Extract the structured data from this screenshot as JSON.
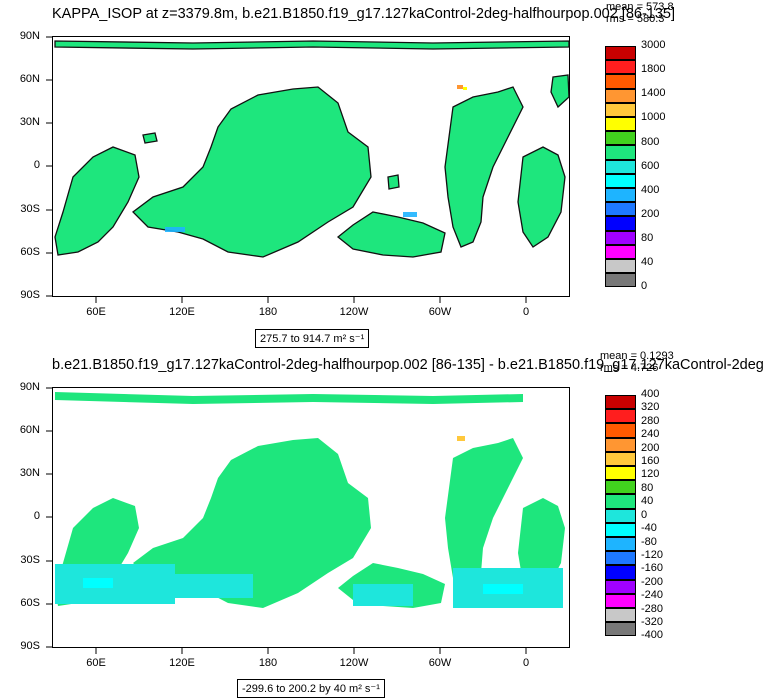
{
  "panels": [
    {
      "title": "KAPPA_ISOP at z=3379.8m, b.e21.B1850.f19_g17.127kaControl-2deg-halfhourpop.002 [86-135]",
      "stat_mean": "mean = 573.8",
      "stat_rms": "rms = 580.3",
      "range_text": "275.7 to 914.7",
      "range_units": "m² s⁻¹",
      "y_ticks": [
        "90N",
        "60N",
        "30N",
        "0",
        "30S",
        "60S",
        "90S"
      ],
      "x_ticks": [
        "60E",
        "120E",
        "180",
        "120W",
        "60W",
        "0"
      ],
      "legend_levels": [
        "3000",
        "1800",
        "1400",
        "1000",
        "800",
        "600",
        "400",
        "200",
        "80",
        "40",
        "0"
      ],
      "legend_colors": [
        "#c80000",
        "#ff1e1e",
        "#ff5a00",
        "#ff9632",
        "#ffc83c",
        "#ffff00",
        "#41d21e",
        "#1ee67d",
        "#1ee6dc",
        "#00ffff",
        "#1eb4ff",
        "#1e78ff",
        "#0000ff",
        "#a000ff",
        "#ff00ff",
        "#c8c8c8",
        "#787878"
      ]
    },
    {
      "title": "b.e21.B1850.f19_g17.127kaControl-2deg-halfhourpop.002 [86-135] - b.e21.B1850.f19_g17.127kaControl-2deg",
      "stat_mean": "mean = 0.1293",
      "stat_rms": "rms = 4.726",
      "range_text": "-299.6 to 200.2 by 40",
      "range_units": "m² s⁻¹",
      "y_ticks": [
        "90N",
        "60N",
        "30N",
        "0",
        "30S",
        "60S",
        "90S"
      ],
      "x_ticks": [
        "60E",
        "120E",
        "180",
        "120W",
        "60W",
        "0"
      ],
      "legend_levels": [
        "400",
        "320",
        "280",
        "240",
        "200",
        "160",
        "120",
        "80",
        "40",
        "0",
        "-40",
        "-80",
        "-120",
        "-160",
        "-200",
        "-240",
        "-280",
        "-320",
        "-400"
      ],
      "legend_colors": [
        "#c80000",
        "#ff1e1e",
        "#ff5a00",
        "#ff9632",
        "#ffc83c",
        "#ffff00",
        "#41d21e",
        "#1ee67d",
        "#1ee6dc",
        "#00ffff",
        "#1eb4ff",
        "#1e78ff",
        "#0000ff",
        "#a000ff",
        "#ff00ff",
        "#c8c8c8",
        "#787878"
      ]
    }
  ],
  "chart_data": [
    {
      "type": "heatmap",
      "title": "KAPPA_ISOP at z=3379.8m, b.e21.B1850.f19_g17.127kaControl-2deg-halfhourpop.002 [86-135]",
      "xlabel": "",
      "ylabel": "",
      "x_ticks": [
        "60E",
        "120E",
        "180",
        "120W",
        "60W",
        "0"
      ],
      "y_ticks": [
        "90N",
        "60N",
        "30N",
        "0",
        "30S",
        "60S",
        "90S"
      ],
      "mean": 573.8,
      "rms": 580.3,
      "min": 275.7,
      "max": 914.7,
      "units": "m2 s-1",
      "levels": [
        0,
        40,
        80,
        200,
        400,
        600,
        800,
        1000,
        1400,
        1800,
        3000
      ],
      "dominant_value_band": [
        600,
        800
      ]
    },
    {
      "type": "heatmap",
      "title": "b.e21.B1850.f19_g17.127kaControl-2deg-halfhourpop.002 [86-135] - b.e21.B1850.f19_g17.127kaControl-2deg",
      "xlabel": "",
      "ylabel": "",
      "x_ticks": [
        "60E",
        "120E",
        "180",
        "120W",
        "60W",
        "0"
      ],
      "y_ticks": [
        "90N",
        "60N",
        "30N",
        "0",
        "30S",
        "60S",
        "90S"
      ],
      "mean": 0.1293,
      "rms": 4.726,
      "min": -299.6,
      "max": 200.2,
      "interval": 40,
      "units": "m2 s-1",
      "levels": [
        -400,
        -320,
        -280,
        -240,
        -200,
        -160,
        -120,
        -80,
        -40,
        0,
        40,
        80,
        120,
        160,
        200,
        240,
        280,
        320,
        400
      ],
      "dominant_value_band": [
        0,
        40
      ]
    }
  ]
}
